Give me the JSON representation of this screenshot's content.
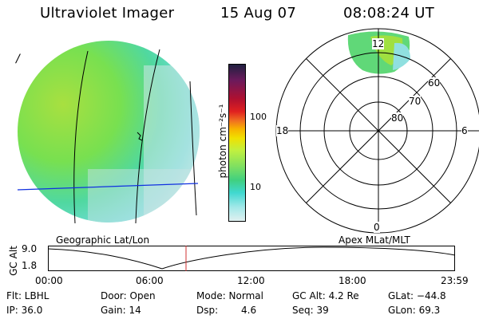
{
  "header": {
    "instrument": "Ultraviolet Imager",
    "date": "15 Aug 07",
    "time": "08:08:24 UT"
  },
  "left_panel": {
    "corner_mark": "/",
    "caption": "Geographic Lat/Lon"
  },
  "colorbar": {
    "unit_label": "photon cm⁻²s⁻¹",
    "ticks": [
      "100",
      "10"
    ],
    "scale": "log",
    "colors": [
      "#202040",
      "#6b1a5c",
      "#b01030",
      "#e02020",
      "#f07020",
      "#f8b000",
      "#f0e000",
      "#c0f040",
      "#80e060",
      "#40d080",
      "#40d8d0",
      "#a0e8e8",
      "#e0f0f0"
    ]
  },
  "polar_panel": {
    "caption": "Apex MLat/MLT",
    "mlt_labels": {
      "top": "12",
      "left": "18",
      "right": "6",
      "bottom": "0"
    },
    "lat_labels": [
      "60",
      "70",
      "80"
    ]
  },
  "altitude_plot": {
    "y_title": "GC Alt",
    "y_ticks": [
      "9.0",
      "1.8"
    ],
    "x_ticks": [
      "00:00",
      "06:00",
      "12:00",
      "18:00",
      "23:59"
    ],
    "current_time_marker": "08:08",
    "line_color": "#000000",
    "marker_color": "#d03030"
  },
  "info": {
    "filter": "Flt: LBHL",
    "door": "Door: Open",
    "mode": "Mode: Normal",
    "gc_alt": "GC Alt: 4.2 Re",
    "glat": "GLat: −44.8",
    "ip": "IP: 36.0",
    "gain": "Gain: 14",
    "dsp_label": "Dsp:",
    "dsp_value": "4.6",
    "seq": "Seq: 39",
    "glon": "GLon:  69.3"
  },
  "colors": {
    "grid": "#000000",
    "lon_line": "#1030e0",
    "aurora_green": "#70e040",
    "aurora_cyan": "#50d8d8"
  }
}
